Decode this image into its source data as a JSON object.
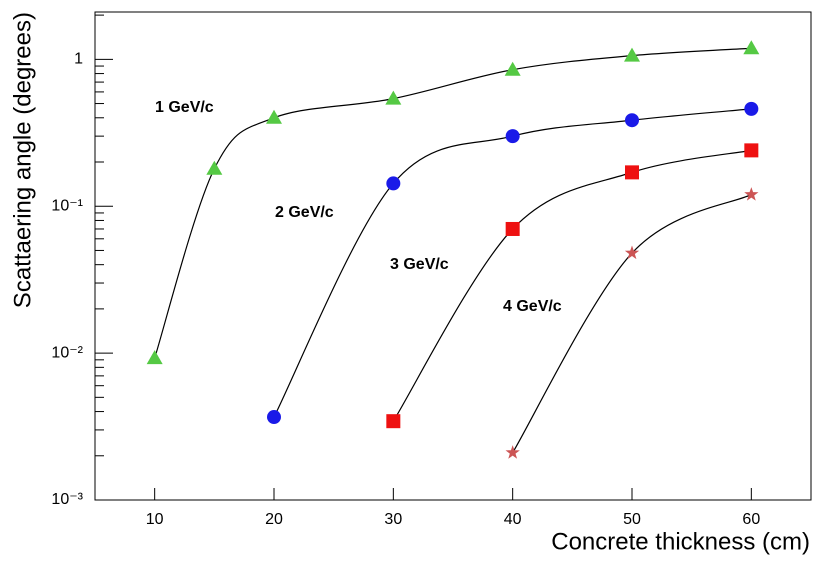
{
  "chart_data": {
    "type": "line",
    "xlabel": "Concrete thickness (cm)",
    "ylabel": "Scattaering angle (degrees)",
    "xlim": [
      5,
      65
    ],
    "xticks": [
      10,
      20,
      30,
      40,
      50,
      60
    ],
    "ylim": [
      0.001,
      2.1
    ],
    "log_y": true,
    "yticks": [
      {
        "value": 0.001,
        "label": "10⁻³"
      },
      {
        "value": 0.01,
        "label": "10⁻²"
      },
      {
        "value": 0.1,
        "label": "10⁻¹"
      },
      1
    ],
    "yminorticks": [
      0.002,
      0.003,
      0.004,
      0.005,
      0.006,
      0.007,
      0.008,
      0.009,
      0.02,
      0.03,
      0.04,
      0.05,
      0.06,
      0.07,
      0.08,
      0.09,
      0.2,
      0.3,
      0.4,
      0.5,
      0.6,
      0.7,
      0.8,
      0.9,
      2
    ],
    "series": [
      {
        "name": "1 GeV/c",
        "color": "#55c944",
        "marker": "triangle",
        "x": [
          10,
          15,
          20,
          30,
          40,
          50,
          60
        ],
        "values": [
          0.00925,
          0.18,
          0.4,
          0.54,
          0.85,
          1.06,
          1.19
        ]
      },
      {
        "name": "2 GeV/c",
        "color": "#1a1ae8",
        "marker": "circle",
        "x": [
          20,
          30,
          40,
          50,
          60
        ],
        "values": [
          0.00367,
          0.143,
          0.3,
          0.385,
          0.46
        ]
      },
      {
        "name": "3 GeV/c",
        "color": "#ee1111",
        "marker": "square",
        "x": [
          30,
          40,
          50,
          60
        ],
        "values": [
          0.00344,
          0.07,
          0.17,
          0.24
        ]
      },
      {
        "name": "4 GeV/c",
        "color": "#cc5555",
        "marker": "star",
        "x": [
          40,
          50,
          60
        ],
        "values": [
          0.0021,
          0.048,
          0.12
        ]
      }
    ]
  }
}
